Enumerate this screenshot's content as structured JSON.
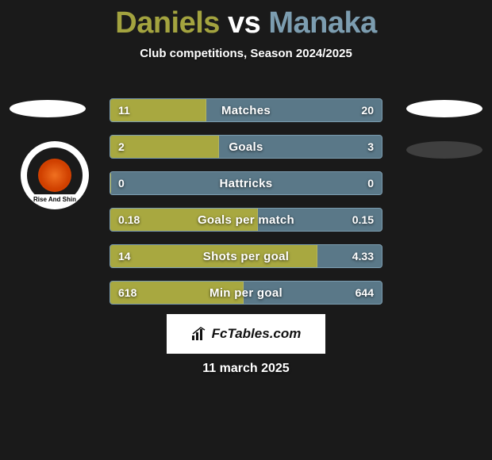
{
  "title": {
    "p1": "Daniels",
    "vs": "vs",
    "p2": "Manaka"
  },
  "subtitle": "Club competitions, Season 2024/2025",
  "colors": {
    "background": "#1a1a1a",
    "left_bar": "#a8a840",
    "right_bar": "#5a7888",
    "bar_border": "#7c9db0",
    "text": "#ffffff",
    "p1_color": "#a3a33f",
    "p2_color": "#7c9db0"
  },
  "crest": {
    "banner_text": "Rise And Shin"
  },
  "bars": [
    {
      "label": "Matches",
      "left": "11",
      "right": "20",
      "left_pct": 35.5
    },
    {
      "label": "Goals",
      "left": "2",
      "right": "3",
      "left_pct": 40.0
    },
    {
      "label": "Hattricks",
      "left": "0",
      "right": "0",
      "left_pct": 0.0
    },
    {
      "label": "Goals per match",
      "left": "0.18",
      "right": "0.15",
      "left_pct": 54.5
    },
    {
      "label": "Shots per goal",
      "left": "14",
      "right": "4.33",
      "left_pct": 76.4
    },
    {
      "label": "Min per goal",
      "left": "618",
      "right": "644",
      "left_pct": 49.0
    }
  ],
  "source": "FcTables.com",
  "date": "11 march 2025"
}
